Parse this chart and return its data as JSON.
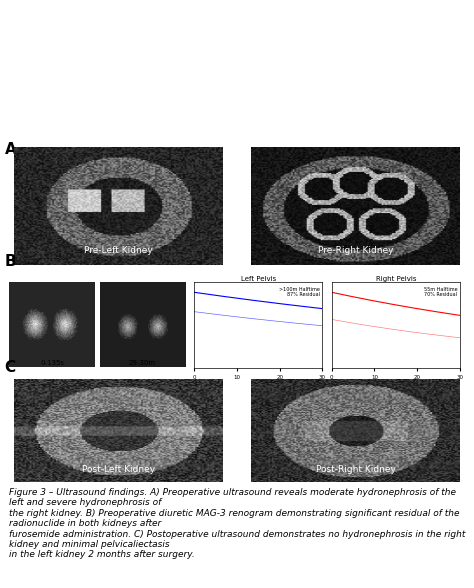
{
  "title_A": "A",
  "title_B": "B",
  "title_C": "C",
  "label_pre_left": "Pre-Left Kidney",
  "label_pre_right": "Pre-Right Kidney",
  "label_post_left": "Post-Left Kidney",
  "label_post_right": "Post-Right Kidney",
  "label_time1": "0-135s",
  "label_time2": "29-30m",
  "left_pelvis_title": "Left Pelvis",
  "right_pelvis_title": "Right Pelvis",
  "left_pelvis_note": ">100m Halftime\n87% Residual",
  "right_pelvis_note": "55m Halftime\n70% Residual",
  "caption": "Figure 3 – Ultrasound findings. A) Preoperative ultrasound reveals moderate hydronephrosis of the left and severe hydronephrosis of\nthe right kidney. B) Preoperative diuretic MAG-3 renogram demonstrating significant residual of the radionuclide in both kidneys after\nfurosemide administration. C) Postoperative ultrasound demonstrates no hydronephrosis in the right kidney and minimal pelvicaliectasis\nin the left kidney 2 months after surgery.",
  "bg_color": "#ffffff",
  "panel_B_bg": "#d8c8d8",
  "ultrasound_color_dark": "#1a1a1a",
  "ultrasound_color_mid": "#555555",
  "label_font_size": 7,
  "caption_font_size": 6.5,
  "section_label_font_size": 11
}
